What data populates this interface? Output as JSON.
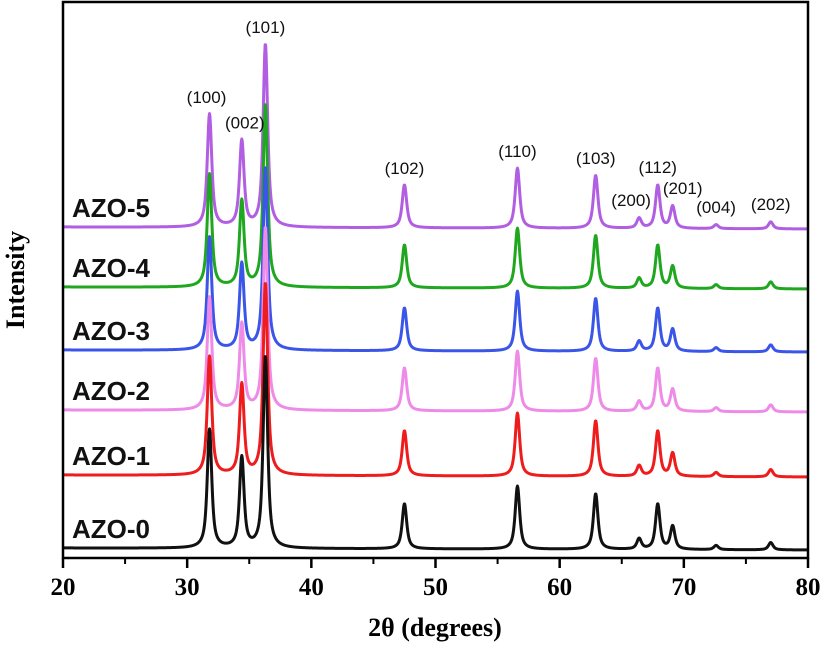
{
  "chart_data": {
    "type": "line",
    "title": "",
    "xlabel": "2θ (degrees)",
    "ylabel": "Intensity",
    "xlim": [
      20,
      80
    ],
    "ylim": [
      0,
      556
    ],
    "xticks": [
      "20",
      "30",
      "40",
      "50",
      "60",
      "70",
      "80"
    ],
    "xticks_minor": [
      25,
      35,
      45,
      55,
      65,
      75
    ],
    "y_ticks_shown": false,
    "grid": false,
    "legend": "none",
    "peak_width_deg": 0.45,
    "peaks": [
      {
        "label": "(100)",
        "two_theta": 31.8,
        "intensity": 113
      },
      {
        "label": "(002)",
        "two_theta": 34.4,
        "intensity": 86
      },
      {
        "label": "(101)",
        "two_theta": 36.3,
        "intensity": 183
      },
      {
        "label": "(102)",
        "two_theta": 47.5,
        "intensity": 43
      },
      {
        "label": "(110)",
        "two_theta": 56.6,
        "intensity": 60
      },
      {
        "label": "(103)",
        "two_theta": 62.9,
        "intensity": 53
      },
      {
        "label": "(200)",
        "two_theta": 66.4,
        "intensity": 10
      },
      {
        "label": "(112)",
        "two_theta": 67.9,
        "intensity": 43
      },
      {
        "label": "(201)",
        "two_theta": 69.1,
        "intensity": 22
      },
      {
        "label": "(004)",
        "two_theta": 72.6,
        "intensity": 4
      },
      {
        "label": "(202)",
        "two_theta": 77.0,
        "intensity": 7
      }
    ],
    "series": [
      {
        "name": "AZO-5",
        "color": "#b15ee3",
        "offset": 331,
        "scale": 1.0
      },
      {
        "name": "AZO-4",
        "color": "#1fa81f",
        "offset": 271,
        "scale": 1.0
      },
      {
        "name": "AZO-3",
        "color": "#3a55e8",
        "offset": 208,
        "scale": 1.0
      },
      {
        "name": "AZO-2",
        "color": "#ee8be8",
        "offset": 148,
        "scale": 1.0
      },
      {
        "name": "AZO-1",
        "color": "#ee1c1c",
        "offset": 83,
        "scale": 1.05
      },
      {
        "name": "AZO-0",
        "color": "#111111",
        "offset": 10,
        "scale": 1.05
      }
    ]
  }
}
